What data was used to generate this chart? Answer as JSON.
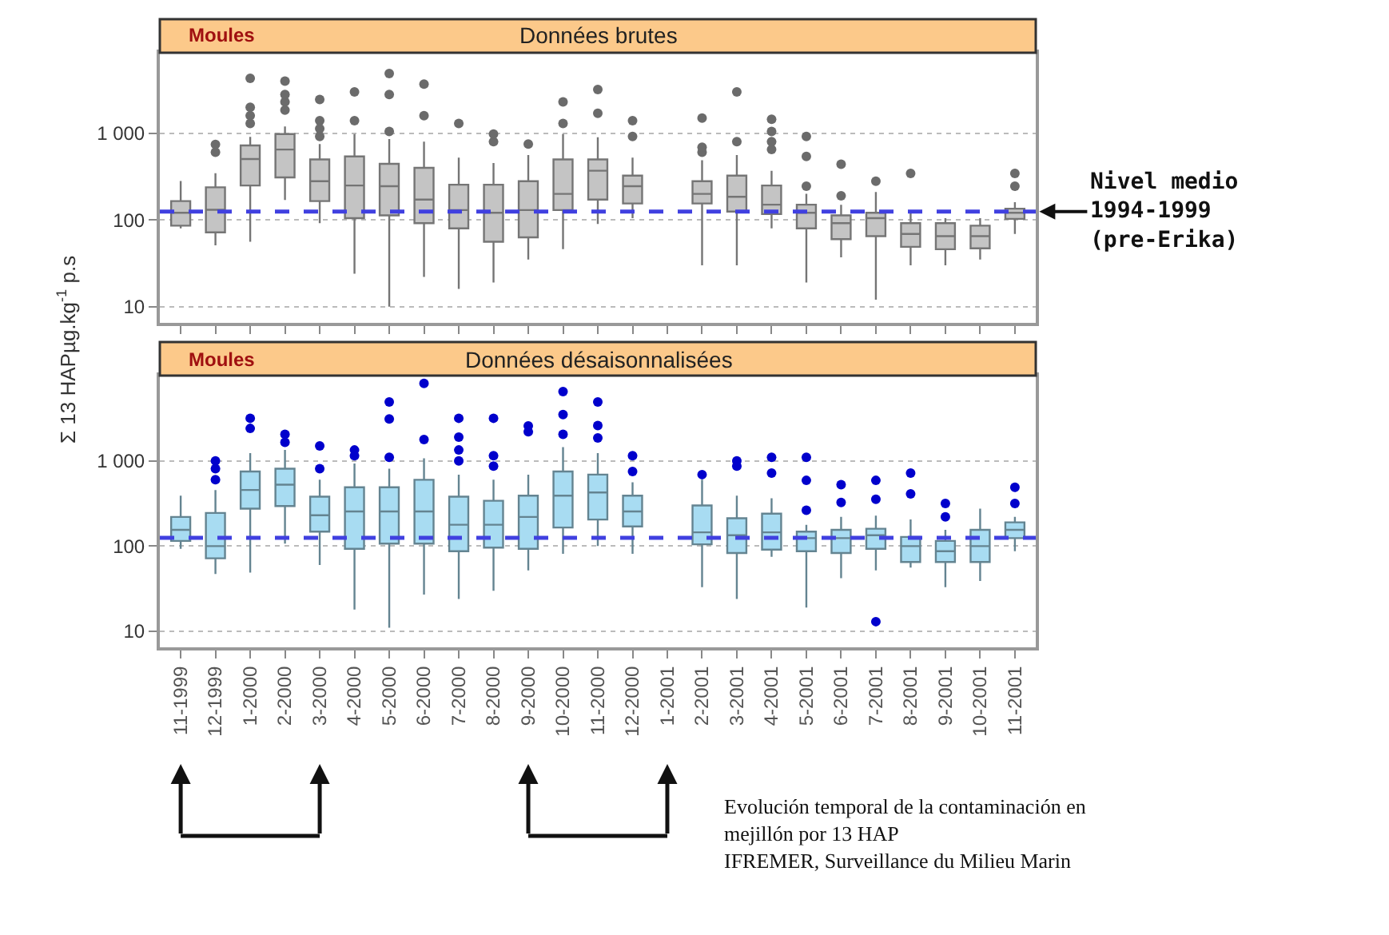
{
  "chart_data": [
    {
      "type": "box",
      "title": "Données brutes",
      "subtitle": "Moules",
      "ylabel": "Σ 13 HAPµg.kg$^{-1}$ p.s",
      "categories": [
        null,
        null,
        null,
        null,
        null,
        null,
        null,
        null,
        null,
        null,
        null,
        null,
        null,
        null,
        null,
        null,
        null,
        null,
        null,
        null,
        null,
        null,
        null,
        null,
        null
      ],
      "series": [
        {
          "color": "#c4c4c4",
          "boxes": [
            {
              "low": 80,
              "q1": 86,
              "median": 121,
              "q3": 165,
              "high": 282
            },
            {
              "low": 51,
              "q1": 72,
              "median": 131,
              "q3": 238,
              "high": 346,
              "outliers": [
                605,
                745
              ]
            },
            {
              "low": 56,
              "q1": 250,
              "median": 505,
              "q3": 725,
              "high": 910,
              "outliers": [
                1300,
                1600,
                2000,
                4300
              ]
            },
            {
              "low": 170,
              "q1": 310,
              "median": 650,
              "q3": 980,
              "high": 1200,
              "outliers": [
                1850,
                2300,
                2800,
                4000
              ]
            },
            {
              "low": 92,
              "q1": 165,
              "median": 280,
              "q3": 500,
              "high": 750,
              "outliers": [
                920,
                1130,
                1400,
                2450
              ]
            },
            {
              "low": 24,
              "q1": 105,
              "median": 250,
              "q3": 540,
              "high": 980,
              "outliers": [
                1400,
                3000
              ]
            },
            {
              "low": 10,
              "q1": 113,
              "median": 245,
              "q3": 445,
              "high": 860,
              "outliers": [
                1050,
                2800,
                4900
              ]
            },
            {
              "low": 22,
              "q1": 92,
              "median": 172,
              "q3": 400,
              "high": 800,
              "outliers": [
                1600,
                3700
              ]
            },
            {
              "low": 16,
              "q1": 80,
              "median": 130,
              "q3": 255,
              "high": 525,
              "outliers": [
                1300
              ]
            },
            {
              "low": 19,
              "q1": 56,
              "median": 121,
              "q3": 255,
              "high": 455,
              "outliers": [
                800,
                980
              ]
            },
            {
              "low": 35,
              "q1": 63,
              "median": 130,
              "q3": 280,
              "high": 560,
              "outliers": [
                750
              ]
            },
            {
              "low": 46,
              "q1": 130,
              "median": 200,
              "q3": 500,
              "high": 980,
              "outliers": [
                1300,
                2300
              ]
            },
            {
              "low": 90,
              "q1": 172,
              "median": 370,
              "q3": 500,
              "high": 900,
              "outliers": [
                1700,
                3200
              ]
            },
            {
              "low": 105,
              "q1": 155,
              "median": 245,
              "q3": 325,
              "high": 525,
              "outliers": [
                920,
                1400
              ]
            },
            null,
            {
              "low": 30,
              "q1": 155,
              "median": 200,
              "q3": 280,
              "high": 490,
              "outliers": [
                605,
                690,
                1500
              ]
            },
            {
              "low": 30,
              "q1": 125,
              "median": 185,
              "q3": 325,
              "high": 560,
              "outliers": [
                800,
                3000
              ]
            },
            {
              "low": 80,
              "q1": 117,
              "median": 150,
              "q3": 250,
              "high": 370,
              "outliers": [
                650,
                800,
                1050,
                1450
              ]
            },
            {
              "low": 19,
              "q1": 80,
              "median": 121,
              "q3": 150,
              "high": 200,
              "outliers": [
                245,
                540,
                920
              ]
            },
            {
              "low": 37,
              "q1": 60,
              "median": 92,
              "q3": 113,
              "high": 150,
              "outliers": [
                190,
                440
              ]
            },
            {
              "low": 12,
              "q1": 65,
              "median": 105,
              "q3": 121,
              "high": 210,
              "outliers": [
                280
              ]
            },
            {
              "low": 30,
              "q1": 49,
              "median": 69,
              "q3": 92,
              "high": 121,
              "outliers": [
                345
              ]
            },
            {
              "low": 30,
              "q1": 46,
              "median": 65,
              "q3": 92,
              "high": 105
            },
            {
              "low": 35,
              "q1": 47,
              "median": 65,
              "q3": 86,
              "high": 105
            },
            {
              "low": 69,
              "q1": 103,
              "median": 121,
              "q3": 135,
              "high": 160,
              "outliers": [
                245,
                345
              ]
            }
          ]
        }
      ],
      "log": true,
      "ylim": [
        6.5,
        8500
      ],
      "yticks": [
        10,
        100,
        {
          "value": 1000,
          "label": "1 000"
        }
      ],
      "grid": "y",
      "tick_labels": "y",
      "ref_lines": [
        {
          "axis": "y",
          "value": 125,
          "label": "Nivel medio\n1994-1999\n(pre-Erika)",
          "color": "#4040e0",
          "line_style": "dashed"
        }
      ]
    },
    {
      "type": "box",
      "title": "Données désaisonnalisées",
      "subtitle": "Moules",
      "categories": [
        "11-1999",
        "12-1999",
        "1-2000",
        "2-2000",
        "3-2000",
        "4-2000",
        "5-2000",
        "6-2000",
        "7-2000",
        "8-2000",
        "9-2000",
        "10-2000",
        "11-2000",
        "12-2000",
        "1-2001",
        "2-2001",
        "3-2001",
        "4-2001",
        "5-2001",
        "6-2001",
        "7-2001",
        "8-2001",
        "9-2001",
        "10-2001",
        "11-2001"
      ],
      "series": [
        {
          "color": "#a8dcf2",
          "boxes": [
            {
              "low": 93,
              "q1": 115,
              "median": 155,
              "q3": 220,
              "high": 390
            },
            {
              "low": 47,
              "q1": 72,
              "median": 100,
              "q3": 245,
              "high": 455,
              "outliers": [
                600,
                810,
                1000
              ]
            },
            {
              "low": 49,
              "q1": 275,
              "median": 455,
              "q3": 750,
              "high": 1230,
              "outliers": [
                2400,
                3160
              ]
            },
            {
              "low": 107,
              "q1": 295,
              "median": 525,
              "q3": 810,
              "high": 1340,
              "outliers": [
                1650,
                2050
              ]
            },
            {
              "low": 60,
              "q1": 148,
              "median": 230,
              "q3": 380,
              "high": 600,
              "outliers": [
                810,
                1500
              ]
            },
            {
              "low": 18,
              "q1": 93,
              "median": 255,
              "q3": 490,
              "high": 930,
              "outliers": [
                1150,
                1340
              ]
            },
            {
              "low": 11,
              "q1": 107,
              "median": 255,
              "q3": 490,
              "high": 810,
              "outliers": [
                1100,
                3100,
                4900
              ]
            },
            {
              "low": 27,
              "q1": 107,
              "median": 255,
              "q3": 600,
              "high": 1070,
              "outliers": [
                1780,
                8100
              ]
            },
            {
              "low": 24,
              "q1": 87,
              "median": 178,
              "q3": 380,
              "high": 690,
              "outliers": [
                1000,
                1340,
                1900,
                3160
              ]
            },
            {
              "low": 30,
              "q1": 96,
              "median": 178,
              "q3": 340,
              "high": 600,
              "outliers": [
                870,
                1150,
                3160
              ]
            },
            {
              "low": 52,
              "q1": 93,
              "median": 220,
              "q3": 390,
              "high": 690,
              "outliers": [
                2190,
                2570
              ]
            },
            {
              "low": 81,
              "q1": 165,
              "median": 390,
              "q3": 750,
              "high": 1450,
              "outliers": [
                2050,
                3500,
                6500
              ]
            },
            {
              "low": 100,
              "q1": 205,
              "median": 425,
              "q3": 690,
              "high": 1230,
              "outliers": [
                1860,
                2600,
                4900
              ]
            },
            {
              "low": 81,
              "q1": 170,
              "median": 255,
              "q3": 390,
              "high": 560,
              "outliers": [
                750,
                1150
              ]
            },
            null,
            {
              "low": 33,
              "q1": 105,
              "median": 145,
              "q3": 300,
              "high": 600,
              "outliers": [
                690
              ]
            },
            {
              "low": 24,
              "q1": 83,
              "median": 134,
              "q3": 212,
              "high": 390,
              "outliers": [
                870,
                1000
              ]
            },
            {
              "low": 75,
              "q1": 91,
              "median": 145,
              "q3": 240,
              "high": 365,
              "outliers": [
                720,
                1100
              ]
            },
            {
              "low": 19,
              "q1": 87,
              "median": 124,
              "q3": 148,
              "high": 178,
              "outliers": [
                263,
                590,
                1100
              ]
            },
            {
              "low": 42,
              "q1": 83,
              "median": 124,
              "q3": 155,
              "high": 220,
              "outliers": [
                325,
                525
              ]
            },
            {
              "low": 52,
              "q1": 93,
              "median": 134,
              "q3": 160,
              "high": 228,
              "outliers": [
                13,
                355,
                590
              ]
            },
            {
              "low": 56,
              "q1": 65,
              "median": 100,
              "q3": 128,
              "high": 205,
              "outliers": [
                410,
                720
              ]
            },
            {
              "low": 33,
              "q1": 65,
              "median": 87,
              "q3": 115,
              "high": 155,
              "outliers": [
                220,
                316
              ]
            },
            {
              "low": 39,
              "q1": 65,
              "median": 100,
              "q3": 155,
              "high": 275
            },
            {
              "low": 87,
              "q1": 124,
              "median": 155,
              "q3": 190,
              "high": 220,
              "outliers": [
                316,
                490
              ]
            }
          ]
        }
      ],
      "log": true,
      "ylim": [
        6.5,
        10000
      ],
      "yticks": [
        10,
        100,
        {
          "value": 1000,
          "label": "1 000"
        }
      ],
      "grid": "y",
      "ref_lines": [
        {
          "axis": "y",
          "value": 125,
          "color": "#4040e0",
          "line_style": "dashed"
        }
      ],
      "annotations": [
        "Evolución temporal de la contaminación en\nmejillón por 13 HAP\nIFREMER, Surveillance du Milieu Marin"
      ]
    }
  ]
}
